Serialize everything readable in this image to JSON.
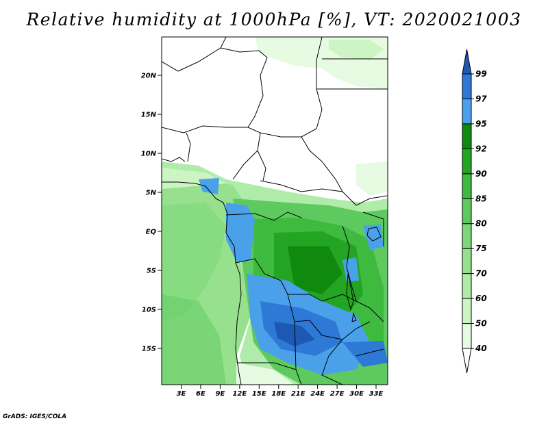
{
  "title": "Relative humidity at 1000hPa [%], VT: 2020021003",
  "credit": "GrADS: IGES/COLA",
  "map": {
    "lat_labels": [
      "20N",
      "15N",
      "10N",
      "5N",
      "EQ",
      "5S",
      "10S",
      "15S"
    ],
    "lon_labels": [
      "3E",
      "6E",
      "9E",
      "12E",
      "15E",
      "18E",
      "21E",
      "24E",
      "27E",
      "30E",
      "33E"
    ]
  },
  "colorbar": {
    "levels": [
      "40",
      "50",
      "60",
      "70",
      "75",
      "80",
      "85",
      "90",
      "92",
      "95",
      "97",
      "99"
    ],
    "colors": [
      "#ffffff",
      "#e6fbe1",
      "#cdf5c4",
      "#afecaa",
      "#96e08e",
      "#7dd87a",
      "#5ec95e",
      "#3eba3e",
      "#23a523",
      "#0f8a0f",
      "#4aa1ea",
      "#2e78d6",
      "#1d58b3"
    ]
  }
}
